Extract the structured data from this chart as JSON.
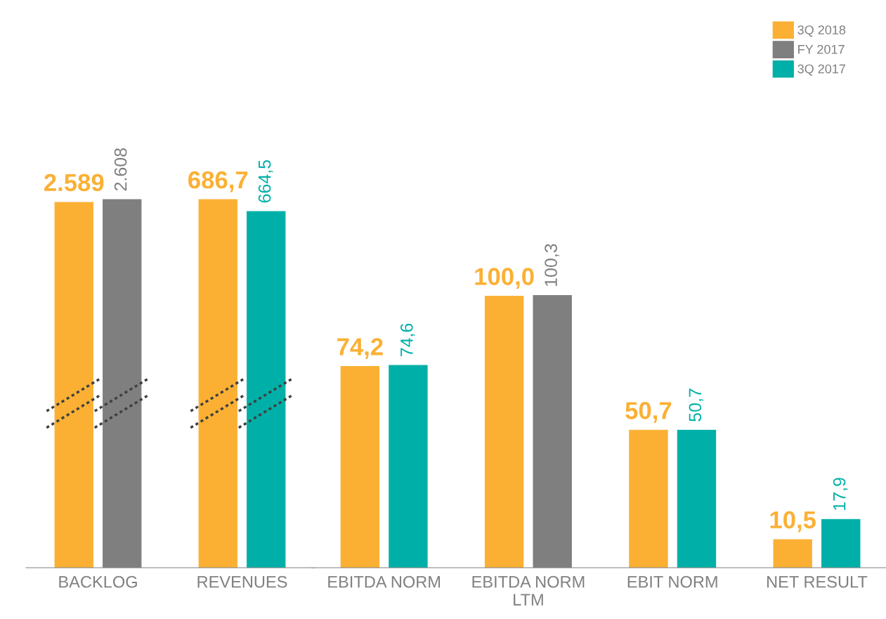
{
  "chart_data": [
    {
      "type": "other",
      "categories": [
        "BACKLOG",
        "REVENUES"
      ],
      "series": [
        {
          "color": "#fbb034",
          "values": [
            2589,
            686.7
          ],
          "value_labels": [
            "2.589",
            "686,7"
          ]
        },
        {
          "color": "#7f7f7f",
          "values": [
            2608,
            null
          ],
          "value_labels": [
            "2.608",
            null
          ]
        },
        {
          "color": "#00b0a8",
          "values": [
            null,
            664.5
          ],
          "value_labels": [
            null,
            "664,5"
          ]
        }
      ]
    },
    {
      "type": "bar",
      "categories": [
        "EBITDA NORM",
        "EBITDA NORM\nLTM",
        "EBIT NORM",
        "NET RESULT"
      ],
      "ylim": [
        0,
        183
      ],
      "tick_labels": "x",
      "legend": "top right",
      "series": [
        {
          "name": "3Q 2018",
          "color": "#fbb034",
          "values": [
            74.2,
            100.0,
            50.7,
            10.5
          ],
          "value_labels": [
            "74,2",
            "100,0",
            "50,7",
            "10,5"
          ]
        },
        {
          "name": "FY 2017",
          "color": "#7f7f7f",
          "values": [
            null,
            100.3,
            null,
            null
          ],
          "value_labels": [
            null,
            "100,3",
            null,
            null
          ]
        },
        {
          "name": "3Q 2017",
          "color": "#00b0a8",
          "values": [
            74.6,
            null,
            50.7,
            17.9
          ],
          "value_labels": [
            "74,6",
            null,
            "50,7",
            "17,9"
          ]
        }
      ]
    }
  ]
}
